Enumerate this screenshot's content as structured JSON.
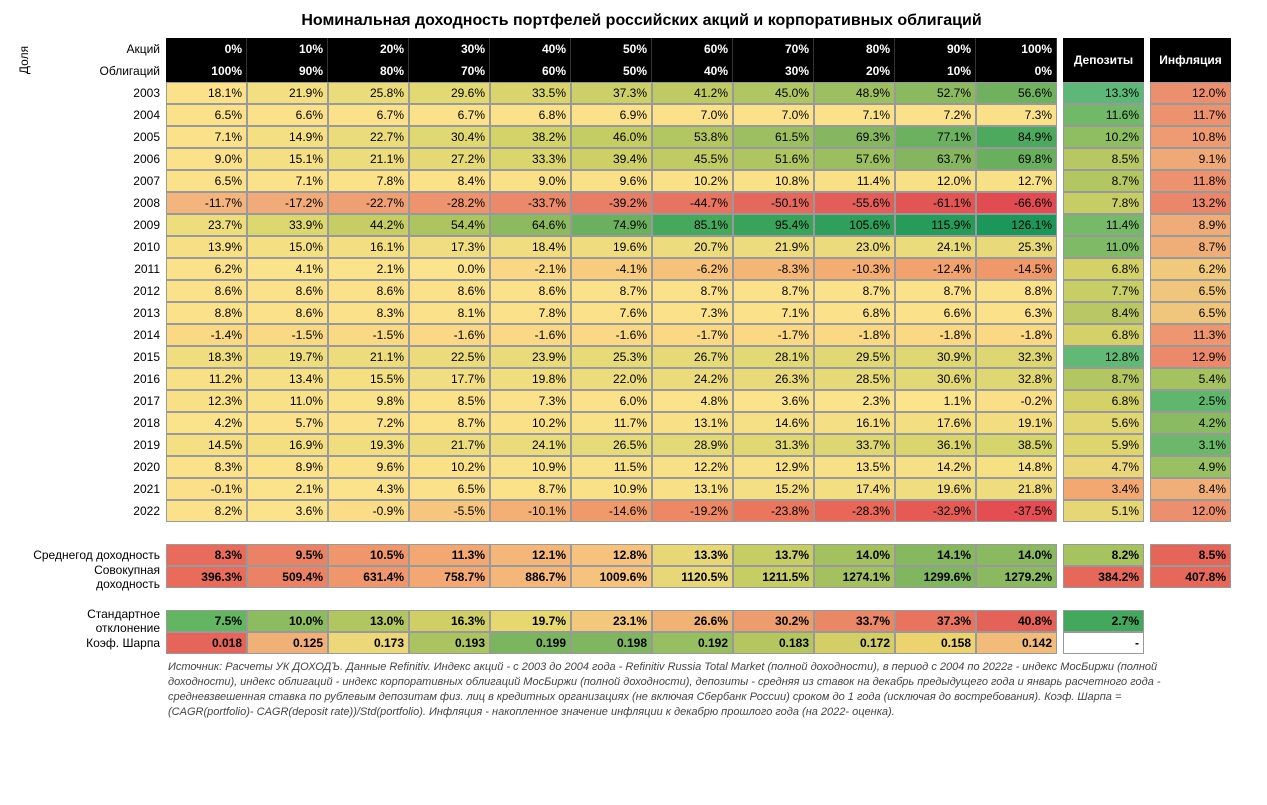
{
  "title": "Номинальная доходность портфелей российских акций и корпоративных облигаций",
  "vertical_label": "Доля",
  "header": {
    "stocks_label": "Акций",
    "bonds_label": "Облигаций",
    "deposits": "Депозиты",
    "inflation": "Инфляция",
    "stocks_pct": [
      "0%",
      "10%",
      "20%",
      "30%",
      "40%",
      "50%",
      "60%",
      "70%",
      "80%",
      "90%",
      "100%"
    ],
    "bonds_pct": [
      "100%",
      "90%",
      "80%",
      "70%",
      "60%",
      "50%",
      "40%",
      "30%",
      "20%",
      "10%",
      "0%"
    ]
  },
  "colors": {
    "header_bg": "#000000",
    "header_fg": "#ffffff",
    "grid_border": "#999999",
    "heat_min": "#e06666",
    "heat_mid": "#ffe599",
    "heat_max": "#57bb8a"
  },
  "years": [
    {
      "year": "2003",
      "alloc": [
        "18.1%",
        "21.9%",
        "25.8%",
        "29.6%",
        "33.5%",
        "37.3%",
        "41.2%",
        "45.0%",
        "48.9%",
        "52.7%",
        "56.6%"
      ],
      "deposit": "13.3%",
      "inflation": "12.0%",
      "alloc_bg": [
        "#fbe28a",
        "#f3df82",
        "#ebdc7b",
        "#e3d973",
        "#d9d56c",
        "#cdd068",
        "#bfca65",
        "#b0c563",
        "#9ebf61",
        "#8ab960",
        "#6fb15f"
      ],
      "dep_bg": "#5cb778",
      "infl_bg": "#ec8f6e"
    },
    {
      "year": "2004",
      "alloc": [
        "6.5%",
        "6.6%",
        "6.7%",
        "6.7%",
        "6.8%",
        "6.9%",
        "7.0%",
        "7.0%",
        "7.1%",
        "7.2%",
        "7.3%"
      ],
      "deposit": "11.6%",
      "inflation": "11.7%",
      "alloc_bg": [
        "#fbe28a",
        "#fbe28a",
        "#fbe28a",
        "#fbe28a",
        "#fbe28a",
        "#fbe28a",
        "#fbe28a",
        "#fbe28a",
        "#fbe28a",
        "#fbe28a",
        "#fae189"
      ],
      "dep_bg": "#71b868",
      "infl_bg": "#ed926f"
    },
    {
      "year": "2005",
      "alloc": [
        "7.1%",
        "14.9%",
        "22.7%",
        "30.4%",
        "38.2%",
        "46.0%",
        "53.8%",
        "61.5%",
        "69.3%",
        "77.1%",
        "84.9%"
      ],
      "deposit": "10.2%",
      "inflation": "10.8%",
      "alloc_bg": [
        "#fbe28a",
        "#f4df83",
        "#ebdc7b",
        "#e0d872",
        "#d3d369",
        "#c4cc64",
        "#b2c662",
        "#9ebf61",
        "#86b760",
        "#6bb15f",
        "#4da95e"
      ],
      "dep_bg": "#8fbe62",
      "infl_bg": "#ee9a72"
    },
    {
      "year": "2006",
      "alloc": [
        "9.0%",
        "15.1%",
        "21.1%",
        "27.2%",
        "33.3%",
        "39.4%",
        "45.5%",
        "51.6%",
        "57.6%",
        "63.7%",
        "69.8%"
      ],
      "deposit": "8.5%",
      "inflation": "9.1%",
      "alloc_bg": [
        "#fbe28a",
        "#f4df83",
        "#ecdc7c",
        "#e4d974",
        "#dad56d",
        "#ced066",
        "#c0cb64",
        "#afc562",
        "#9bbe60",
        "#85b65f",
        "#69af5e"
      ],
      "dep_bg": "#b7c763",
      "infl_bg": "#efa877"
    },
    {
      "year": "2007",
      "alloc": [
        "6.5%",
        "7.1%",
        "7.8%",
        "8.4%",
        "9.0%",
        "9.6%",
        "10.2%",
        "10.8%",
        "11.4%",
        "12.0%",
        "12.7%"
      ],
      "deposit": "8.7%",
      "inflation": "11.8%",
      "alloc_bg": [
        "#fbe28a",
        "#fbe28a",
        "#fbe289",
        "#fbe289",
        "#fae188",
        "#fae188",
        "#fae188",
        "#f9e187",
        "#f9e087",
        "#f8e086",
        "#f8e086"
      ],
      "dep_bg": "#b2c662",
      "infl_bg": "#ed926f"
    },
    {
      "year": "2008",
      "alloc": [
        "-11.7%",
        "-17.2%",
        "-22.7%",
        "-28.2%",
        "-33.7%",
        "-39.2%",
        "-44.7%",
        "-50.1%",
        "-55.6%",
        "-61.1%",
        "-66.6%"
      ],
      "deposit": "7.8%",
      "inflation": "13.2%",
      "alloc_bg": [
        "#f3b57d",
        "#f1aa79",
        "#ef9f74",
        "#ed946f",
        "#eb896b",
        "#e97e66",
        "#e77361",
        "#e5685d",
        "#e45e59",
        "#e25555",
        "#e04c52"
      ],
      "dep_bg": "#c6cd66",
      "infl_bg": "#ea876a"
    },
    {
      "year": "2009",
      "alloc": [
        "23.7%",
        "33.9%",
        "44.2%",
        "54.4%",
        "64.6%",
        "74.9%",
        "85.1%",
        "95.4%",
        "105.6%",
        "115.9%",
        "126.1%"
      ],
      "deposit": "11.4%",
      "inflation": "8.9%",
      "alloc_bg": [
        "#eedd7d",
        "#ddd76f",
        "#c7cd65",
        "#adc461",
        "#8eba5f",
        "#6bb05e",
        "#46a85d",
        "#39a35c",
        "#2f9f5b",
        "#269b5a",
        "#1d9759"
      ],
      "dep_bg": "#76b968",
      "infl_bg": "#efab78"
    },
    {
      "year": "2010",
      "alloc": [
        "13.9%",
        "15.0%",
        "16.1%",
        "17.3%",
        "18.4%",
        "19.6%",
        "20.7%",
        "21.9%",
        "23.0%",
        "24.1%",
        "25.3%"
      ],
      "deposit": "11.0%",
      "inflation": "8.7%",
      "alloc_bg": [
        "#f6df84",
        "#f4df83",
        "#f3de82",
        "#f1dd81",
        "#f0dd80",
        "#efdc7f",
        "#eddc7e",
        "#ecdc7d",
        "#ebdb7c",
        "#eadb7b",
        "#e8da7a"
      ],
      "dep_bg": "#7fbb67",
      "infl_bg": "#efad78"
    },
    {
      "year": "2011",
      "alloc": [
        "6.2%",
        "4.1%",
        "2.1%",
        "0.0%",
        "-2.1%",
        "-4.1%",
        "-6.2%",
        "-8.3%",
        "-10.3%",
        "-12.4%",
        "-14.5%"
      ],
      "deposit": "6.8%",
      "inflation": "6.2%",
      "alloc_bg": [
        "#fbe28a",
        "#fbe38b",
        "#fbe38c",
        "#fbe48d",
        "#fad784",
        "#f8cc7f",
        "#f6c17a",
        "#f4b676",
        "#f3ac72",
        "#f1a26e",
        "#ef986a"
      ],
      "dep_bg": "#d4d168",
      "infl_bg": "#f1c97d"
    },
    {
      "year": "2012",
      "alloc": [
        "8.6%",
        "8.6%",
        "8.6%",
        "8.6%",
        "8.6%",
        "8.7%",
        "8.7%",
        "8.7%",
        "8.7%",
        "8.7%",
        "8.8%"
      ],
      "deposit": "7.7%",
      "inflation": "6.5%",
      "alloc_bg": [
        "#fbe28a",
        "#fbe28a",
        "#fbe28a",
        "#fbe28a",
        "#fbe28a",
        "#fbe28a",
        "#fbe28a",
        "#fbe28a",
        "#fbe28a",
        "#fbe28a",
        "#fbe28a"
      ],
      "dep_bg": "#c7ce66",
      "infl_bg": "#f0c67c"
    },
    {
      "year": "2013",
      "alloc": [
        "8.8%",
        "8.6%",
        "8.3%",
        "8.1%",
        "7.8%",
        "7.6%",
        "7.3%",
        "7.1%",
        "6.8%",
        "6.6%",
        "6.3%"
      ],
      "deposit": "8.4%",
      "inflation": "6.5%",
      "alloc_bg": [
        "#fbe28a",
        "#fbe28a",
        "#fbe28a",
        "#fbe28a",
        "#fbe28a",
        "#fbe28a",
        "#fbe28a",
        "#fbe28a",
        "#fbe28a",
        "#fbe28a",
        "#fbe28a"
      ],
      "dep_bg": "#b9c864",
      "infl_bg": "#f0c67c"
    },
    {
      "year": "2014",
      "alloc": [
        "-1.4%",
        "-1.5%",
        "-1.5%",
        "-1.6%",
        "-1.6%",
        "-1.6%",
        "-1.7%",
        "-1.7%",
        "-1.8%",
        "-1.8%",
        "-1.8%"
      ],
      "deposit": "6.8%",
      "inflation": "11.3%",
      "alloc_bg": [
        "#fad985",
        "#fad985",
        "#fad985",
        "#fad885",
        "#fad885",
        "#fad885",
        "#fad884",
        "#fad884",
        "#fad884",
        "#fad884",
        "#fad884"
      ],
      "dep_bg": "#d4d168",
      "infl_bg": "#ee9670"
    },
    {
      "year": "2015",
      "alloc": [
        "18.3%",
        "19.7%",
        "21.1%",
        "22.5%",
        "23.9%",
        "25.3%",
        "26.7%",
        "28.1%",
        "29.5%",
        "30.9%",
        "32.3%"
      ],
      "deposit": "12.8%",
      "inflation": "12.9%",
      "alloc_bg": [
        "#f0dd80",
        "#eedd7f",
        "#eddc7d",
        "#ebdb7c",
        "#e9db7b",
        "#e7da79",
        "#e5d978",
        "#e3d876",
        "#e1d875",
        "#dfd773",
        "#ddd672"
      ],
      "dep_bg": "#62b875",
      "infl_bg": "#eb896b"
    },
    {
      "year": "2016",
      "alloc": [
        "11.2%",
        "13.4%",
        "15.5%",
        "17.7%",
        "19.8%",
        "22.0%",
        "24.2%",
        "26.3%",
        "28.5%",
        "30.6%",
        "32.8%"
      ],
      "deposit": "8.7%",
      "inflation": "5.4%",
      "alloc_bg": [
        "#f8e086",
        "#f6e085",
        "#f4df83",
        "#f2de82",
        "#efdd80",
        "#eddc7e",
        "#ebdb7c",
        "#e8da7a",
        "#e5d978",
        "#e2d876",
        "#dfd774"
      ],
      "dep_bg": "#b2c662",
      "infl_bg": "#a5c260"
    },
    {
      "year": "2017",
      "alloc": [
        "12.3%",
        "11.0%",
        "9.8%",
        "8.5%",
        "7.3%",
        "6.0%",
        "4.8%",
        "3.6%",
        "2.3%",
        "1.1%",
        "-0.2%"
      ],
      "deposit": "6.8%",
      "inflation": "2.5%",
      "alloc_bg": [
        "#f8e086",
        "#f9e187",
        "#fae288",
        "#fbe289",
        "#fbe28a",
        "#fbe28a",
        "#fbe38b",
        "#fbe38b",
        "#fbe38c",
        "#fbe48c",
        "#fbdf88"
      ],
      "dep_bg": "#d4d168",
      "infl_bg": "#5fb66c"
    },
    {
      "year": "2018",
      "alloc": [
        "4.2%",
        "5.7%",
        "7.2%",
        "8.7%",
        "10.2%",
        "11.7%",
        "13.1%",
        "14.6%",
        "16.1%",
        "17.6%",
        "19.1%"
      ],
      "deposit": "5.6%",
      "inflation": "4.2%",
      "alloc_bg": [
        "#fbe38b",
        "#fbe28a",
        "#fbe28a",
        "#fbe289",
        "#fae188",
        "#f9e187",
        "#f8e086",
        "#f6e085",
        "#f5df84",
        "#f3de82",
        "#f2de81"
      ],
      "dep_bg": "#e1d672",
      "infl_bg": "#8abb63"
    },
    {
      "year": "2019",
      "alloc": [
        "14.5%",
        "16.9%",
        "19.3%",
        "21.7%",
        "24.1%",
        "26.5%",
        "28.9%",
        "31.3%",
        "33.7%",
        "36.1%",
        "38.5%"
      ],
      "deposit": "5.9%",
      "inflation": "3.1%",
      "alloc_bg": [
        "#f5df84",
        "#f3de82",
        "#f0dd80",
        "#eddc7e",
        "#eadb7c",
        "#e7da79",
        "#e4d977",
        "#e1d874",
        "#ddd672",
        "#dad56f",
        "#d6d46c"
      ],
      "dep_bg": "#ded56f",
      "infl_bg": "#6cb769"
    },
    {
      "year": "2020",
      "alloc": [
        "8.3%",
        "8.9%",
        "9.6%",
        "10.2%",
        "10.9%",
        "11.5%",
        "12.2%",
        "12.9%",
        "13.5%",
        "14.2%",
        "14.8%"
      ],
      "deposit": "4.7%",
      "inflation": "4.9%",
      "alloc_bg": [
        "#fbe28a",
        "#fbe289",
        "#fae188",
        "#fae188",
        "#f9e187",
        "#f9e187",
        "#f8e086",
        "#f8e086",
        "#f7e085",
        "#f6e085",
        "#f6e084"
      ],
      "dep_bg": "#ebd779",
      "infl_bg": "#99c063"
    },
    {
      "year": "2021",
      "alloc": [
        "-0.1%",
        "2.1%",
        "4.3%",
        "6.5%",
        "8.7%",
        "10.9%",
        "13.1%",
        "15.2%",
        "17.4%",
        "19.6%",
        "21.8%"
      ],
      "deposit": "3.4%",
      "inflation": "8.4%",
      "alloc_bg": [
        "#fbe089",
        "#fbe38c",
        "#fbe38b",
        "#fbe28a",
        "#fbe289",
        "#f9e187",
        "#f7e086",
        "#f5df84",
        "#f3de82",
        "#f0dd80",
        "#eedc7e"
      ],
      "dep_bg": "#f3a872",
      "infl_bg": "#f0af79"
    },
    {
      "year": "2022",
      "alloc": [
        "8.2%",
        "3.6%",
        "-0.9%",
        "-5.5%",
        "-10.1%",
        "-14.6%",
        "-19.2%",
        "-23.8%",
        "-28.3%",
        "-32.9%",
        "-37.5%"
      ],
      "deposit": "5.1%",
      "inflation": "12.0%",
      "alloc_bg": [
        "#fbe28a",
        "#fbe38b",
        "#fbdd87",
        "#f7c67e",
        "#f3af74",
        "#f0996b",
        "#ed8764",
        "#ea765e",
        "#e86759",
        "#e65a55",
        "#e44e52"
      ],
      "dep_bg": "#e7d676",
      "infl_bg": "#ec8f6e"
    }
  ],
  "summary": [
    {
      "label": "Среднегод доходность",
      "alloc": [
        "8.3%",
        "9.5%",
        "10.5%",
        "11.3%",
        "12.1%",
        "12.8%",
        "13.3%",
        "13.7%",
        "14.0%",
        "14.1%",
        "14.0%"
      ],
      "deposit": "8.2%",
      "inflation": "8.5%",
      "alloc_bg": [
        "#e86b5c",
        "#ec8265",
        "#f0966c",
        "#f3a873",
        "#f5b679",
        "#f6c27d",
        "#e8d777",
        "#c7cd65",
        "#a3c25f",
        "#85b85f",
        "#8ab95f"
      ],
      "dep_bg": "#a7c360",
      "infl_bg": "#e66559"
    },
    {
      "label": "Совокупная доходность",
      "alloc": [
        "396.3%",
        "509.4%",
        "631.4%",
        "758.7%",
        "886.7%",
        "1009.6%",
        "1120.5%",
        "1211.5%",
        "1274.1%",
        "1299.6%",
        "1279.2%"
      ],
      "deposit": "384.2%",
      "inflation": "407.8%",
      "alloc_bg": [
        "#e86b5c",
        "#ec8265",
        "#f0966c",
        "#f3a873",
        "#f5b679",
        "#f6c27d",
        "#e8d777",
        "#c7cd65",
        "#a3c25f",
        "#7fb65f",
        "#8ab95f"
      ],
      "dep_bg": "#e6685a",
      "infl_bg": "#e6685a"
    }
  ],
  "stats": [
    {
      "label": "Стандартное отклонение",
      "alloc": [
        "7.5%",
        "10.0%",
        "13.0%",
        "16.3%",
        "19.7%",
        "23.1%",
        "26.6%",
        "30.2%",
        "33.7%",
        "37.3%",
        "40.8%"
      ],
      "deposit": "2.7%",
      "inflation": "",
      "alloc_bg": [
        "#63b561",
        "#8dbb60",
        "#b1c561",
        "#d0cf65",
        "#e7d770",
        "#f3c87d",
        "#f0b275",
        "#ed9c6e",
        "#ea8766",
        "#e8745f",
        "#e56259"
      ],
      "dep_bg": "#43a75d",
      "infl_bg": "#ffffff"
    },
    {
      "label": "Коэф. Шарпа",
      "alloc": [
        "0.018",
        "0.125",
        "0.173",
        "0.193",
        "0.199",
        "0.198",
        "0.192",
        "0.183",
        "0.172",
        "0.158",
        "0.142"
      ],
      "deposit": "-",
      "inflation": "",
      "alloc_bg": [
        "#e5655a",
        "#f1b077",
        "#ecd779",
        "#abc360",
        "#7cb55f",
        "#80b65f",
        "#97be60",
        "#b5c661",
        "#d3cf66",
        "#ecd36f",
        "#f3bb7a"
      ],
      "dep_bg": "#ffffff",
      "infl_bg": "#ffffff"
    }
  ],
  "footnote": "Источник: Расчеты УК ДОХОДЪ. Данные Refinitiv. Индекс акций - с 2003 до 2004 года - Refinitiv Russia Total Market (полной доходности), в период с 2004 по 2022г - индекс МосБиржи (полной доходности), индекс облигаций - индекс корпоративных облигаций МосБиржи (полной доходности), депозиты - средняя из ставок на декабрь предыдущего года и январь расчетного года - средневзвешенная ставка по рублевым депозитам физ. лиц в кредитных организациях (не включая Сбербанк России) сроком до 1 года (исключая до востребования). Коэф. Шарпа = (CAGR(portfolio)- CAGR(deposit rate))/Std(portfolio). Инфляция - накопленное значение инфляции к декабрю прошлого года (на 2022- оценка)."
}
